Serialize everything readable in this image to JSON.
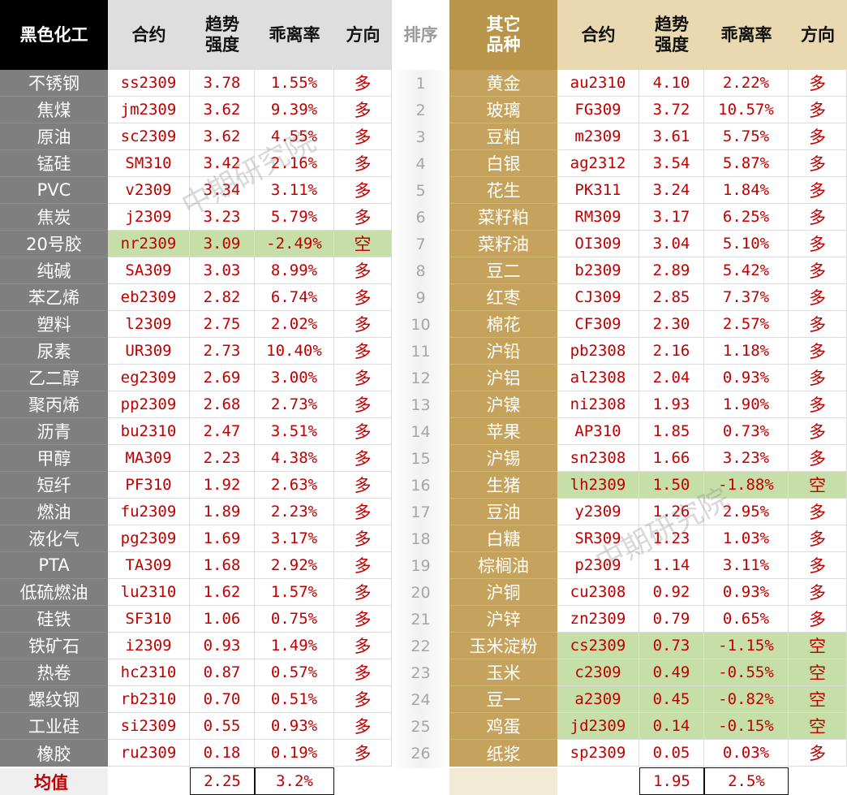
{
  "headers": {
    "left_category": "黑色化工",
    "contract": "合约",
    "strength": "趋势强度",
    "deviation": "乖离率",
    "direction": "方向",
    "rank": "排序",
    "right_category": "其它品种"
  },
  "strength_line1": "趋势",
  "strength_line2": "强度",
  "right_cat_line1": "其它",
  "right_cat_line2": "品种",
  "colors": {
    "left_header": "#000000",
    "left_name_bg": "#7f7f7f",
    "right_name_bg": "#c6a35c",
    "right_header": "#b8954a",
    "value_text": "#c00000",
    "short_highlight": "#c6dfa8"
  },
  "left_rows": [
    {
      "name": "不锈钢",
      "contract": "ss2309",
      "strength": "3.78",
      "deviation": "1.55%",
      "direction": "多",
      "short": false
    },
    {
      "name": "焦煤",
      "contract": "jm2309",
      "strength": "3.62",
      "deviation": "9.39%",
      "direction": "多",
      "short": false
    },
    {
      "name": "原油",
      "contract": "sc2309",
      "strength": "3.62",
      "deviation": "4.55%",
      "direction": "多",
      "short": false
    },
    {
      "name": "锰硅",
      "contract": "SM310",
      "strength": "3.42",
      "deviation": "2.16%",
      "direction": "多",
      "short": false
    },
    {
      "name": "PVC",
      "contract": "v2309",
      "strength": "3.34",
      "deviation": "3.11%",
      "direction": "多",
      "short": false
    },
    {
      "name": "焦炭",
      "contract": "j2309",
      "strength": "3.23",
      "deviation": "5.79%",
      "direction": "多",
      "short": false
    },
    {
      "name": "20号胶",
      "contract": "nr2309",
      "strength": "3.09",
      "deviation": "-2.49%",
      "direction": "空",
      "short": true
    },
    {
      "name": "纯碱",
      "contract": "SA309",
      "strength": "3.03",
      "deviation": "8.99%",
      "direction": "多",
      "short": false
    },
    {
      "name": "苯乙烯",
      "contract": "eb2309",
      "strength": "2.82",
      "deviation": "6.74%",
      "direction": "多",
      "short": false
    },
    {
      "name": "塑料",
      "contract": "l2309",
      "strength": "2.75",
      "deviation": "2.02%",
      "direction": "多",
      "short": false
    },
    {
      "name": "尿素",
      "contract": "UR309",
      "strength": "2.73",
      "deviation": "10.40%",
      "direction": "多",
      "short": false
    },
    {
      "name": "乙二醇",
      "contract": "eg2309",
      "strength": "2.69",
      "deviation": "3.00%",
      "direction": "多",
      "short": false
    },
    {
      "name": "聚丙烯",
      "contract": "pp2309",
      "strength": "2.68",
      "deviation": "2.73%",
      "direction": "多",
      "short": false
    },
    {
      "name": "沥青",
      "contract": "bu2310",
      "strength": "2.47",
      "deviation": "3.51%",
      "direction": "多",
      "short": false
    },
    {
      "name": "甲醇",
      "contract": "MA309",
      "strength": "2.23",
      "deviation": "4.38%",
      "direction": "多",
      "short": false
    },
    {
      "name": "短纤",
      "contract": "PF310",
      "strength": "1.92",
      "deviation": "2.63%",
      "direction": "多",
      "short": false
    },
    {
      "name": "燃油",
      "contract": "fu2309",
      "strength": "1.89",
      "deviation": "2.23%",
      "direction": "多",
      "short": false
    },
    {
      "name": "液化气",
      "contract": "pg2309",
      "strength": "1.69",
      "deviation": "3.17%",
      "direction": "多",
      "short": false
    },
    {
      "name": "PTA",
      "contract": "TA309",
      "strength": "1.68",
      "deviation": "2.92%",
      "direction": "多",
      "short": false
    },
    {
      "name": "低硫燃油",
      "contract": "lu2310",
      "strength": "1.62",
      "deviation": "1.57%",
      "direction": "多",
      "short": false
    },
    {
      "name": "硅铁",
      "contract": "SF310",
      "strength": "1.06",
      "deviation": "0.75%",
      "direction": "多",
      "short": false
    },
    {
      "name": "铁矿石",
      "contract": "i2309",
      "strength": "0.93",
      "deviation": "1.49%",
      "direction": "多",
      "short": false
    },
    {
      "name": "热卷",
      "contract": "hc2310",
      "strength": "0.87",
      "deviation": "0.57%",
      "direction": "多",
      "short": false
    },
    {
      "name": "螺纹钢",
      "contract": "rb2310",
      "strength": "0.70",
      "deviation": "0.51%",
      "direction": "多",
      "short": false
    },
    {
      "name": "工业硅",
      "contract": "si2309",
      "strength": "0.55",
      "deviation": "0.93%",
      "direction": "多",
      "short": false
    },
    {
      "name": "橡胶",
      "contract": "ru2309",
      "strength": "0.18",
      "deviation": "0.19%",
      "direction": "多",
      "short": false
    }
  ],
  "ranks": [
    "1",
    "2",
    "3",
    "4",
    "5",
    "6",
    "7",
    "8",
    "9",
    "10",
    "11",
    "12",
    "13",
    "14",
    "15",
    "16",
    "17",
    "18",
    "19",
    "20",
    "21",
    "22",
    "23",
    "24",
    "25",
    "26"
  ],
  "right_rows": [
    {
      "name": "黄金",
      "contract": "au2310",
      "strength": "4.10",
      "deviation": "2.22%",
      "direction": "多",
      "short": false
    },
    {
      "name": "玻璃",
      "contract": "FG309",
      "strength": "3.72",
      "deviation": "10.57%",
      "direction": "多",
      "short": false
    },
    {
      "name": "豆粕",
      "contract": "m2309",
      "strength": "3.61",
      "deviation": "5.75%",
      "direction": "多",
      "short": false
    },
    {
      "name": "白银",
      "contract": "ag2312",
      "strength": "3.54",
      "deviation": "5.87%",
      "direction": "多",
      "short": false
    },
    {
      "name": "花生",
      "contract": "PK311",
      "strength": "3.24",
      "deviation": "1.84%",
      "direction": "多",
      "short": false
    },
    {
      "name": "菜籽粕",
      "contract": "RM309",
      "strength": "3.17",
      "deviation": "6.25%",
      "direction": "多",
      "short": false
    },
    {
      "name": "菜籽油",
      "contract": "OI309",
      "strength": "3.04",
      "deviation": "5.10%",
      "direction": "多",
      "short": false
    },
    {
      "name": "豆二",
      "contract": "b2309",
      "strength": "2.89",
      "deviation": "5.42%",
      "direction": "多",
      "short": false
    },
    {
      "name": "红枣",
      "contract": "CJ309",
      "strength": "2.85",
      "deviation": "7.37%",
      "direction": "多",
      "short": false
    },
    {
      "name": "棉花",
      "contract": "CF309",
      "strength": "2.30",
      "deviation": "2.57%",
      "direction": "多",
      "short": false
    },
    {
      "name": "沪铅",
      "contract": "pb2308",
      "strength": "2.16",
      "deviation": "1.18%",
      "direction": "多",
      "short": false
    },
    {
      "name": "沪铝",
      "contract": "al2308",
      "strength": "2.04",
      "deviation": "0.93%",
      "direction": "多",
      "short": false
    },
    {
      "name": "沪镍",
      "contract": "ni2308",
      "strength": "1.93",
      "deviation": "1.90%",
      "direction": "多",
      "short": false
    },
    {
      "name": "苹果",
      "contract": "AP310",
      "strength": "1.85",
      "deviation": "0.73%",
      "direction": "多",
      "short": false
    },
    {
      "name": "沪锡",
      "contract": "sn2308",
      "strength": "1.66",
      "deviation": "3.23%",
      "direction": "多",
      "short": false
    },
    {
      "name": "生猪",
      "contract": "lh2309",
      "strength": "1.50",
      "deviation": "-1.88%",
      "direction": "空",
      "short": true
    },
    {
      "name": "豆油",
      "contract": "y2309",
      "strength": "1.26",
      "deviation": "2.95%",
      "direction": "多",
      "short": false
    },
    {
      "name": "白糖",
      "contract": "SR309",
      "strength": "1.23",
      "deviation": "1.03%",
      "direction": "多",
      "short": false
    },
    {
      "name": "棕榈油",
      "contract": "p2309",
      "strength": "1.14",
      "deviation": "3.11%",
      "direction": "多",
      "short": false
    },
    {
      "name": "沪铜",
      "contract": "cu2308",
      "strength": "0.92",
      "deviation": "0.93%",
      "direction": "多",
      "short": false
    },
    {
      "name": "沪锌",
      "contract": "zn2309",
      "strength": "0.79",
      "deviation": "0.65%",
      "direction": "多",
      "short": false
    },
    {
      "name": "玉米淀粉",
      "contract": "cs2309",
      "strength": "0.73",
      "deviation": "-1.15%",
      "direction": "空",
      "short": true
    },
    {
      "name": "玉米",
      "contract": "c2309",
      "strength": "0.49",
      "deviation": "-0.55%",
      "direction": "空",
      "short": true
    },
    {
      "name": "豆一",
      "contract": "a2309",
      "strength": "0.45",
      "deviation": "-0.82%",
      "direction": "空",
      "short": true
    },
    {
      "name": "鸡蛋",
      "contract": "jd2309",
      "strength": "0.14",
      "deviation": "-0.15%",
      "direction": "空",
      "short": true
    },
    {
      "name": "纸浆",
      "contract": "sp2309",
      "strength": "0.05",
      "deviation": "0.03%",
      "direction": "多",
      "short": false
    }
  ],
  "footer": {
    "label": "均值",
    "left_strength_avg": "2.25",
    "left_deviation_avg": "3.2%",
    "right_strength_avg": "1.95",
    "right_deviation_avg": "2.5%"
  },
  "watermark": "中期研究院"
}
